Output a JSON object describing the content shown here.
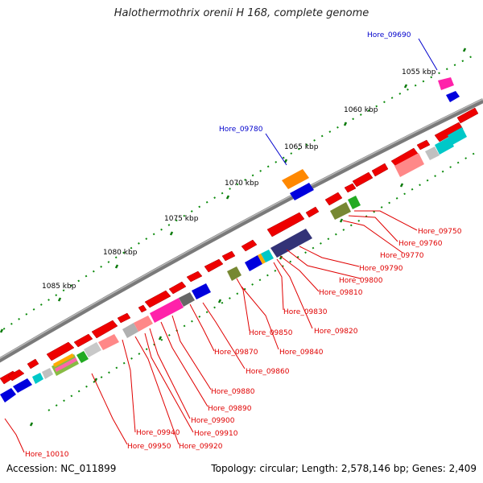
{
  "title": "Halothermothrix orenii H 168, complete genome",
  "footer": {
    "accession": "Accession: NC_011899",
    "topology": "Topology: circular; Length: 2,578,146 bp; Genes: 2,409"
  },
  "scale_labels": [
    "1055 kbp",
    "1060 kbp",
    "1065 kbp",
    "1070 kbp",
    "1075 kbp",
    "1080 kbp",
    "1085 kbp"
  ],
  "highlighted_genes": [
    "Hore_09690",
    "Hore_09780"
  ],
  "gene_labels": [
    "Hore_09750",
    "Hore_09760",
    "Hore_09770",
    "Hore_09790",
    "Hore_09800",
    "Hore_09810",
    "Hore_09830",
    "Hore_09820",
    "Hore_09850",
    "Hore_09840",
    "Hore_09870",
    "Hore_09860",
    "Hore_09880",
    "Hore_09890",
    "Hore_09900",
    "Hore_09910",
    "Hore_09940",
    "Hore_09920",
    "Hore_09950",
    "Hore_10010"
  ],
  "colors": {
    "forward_gene": "#ff0000",
    "backbone": "#808080",
    "label_red": "#e00000",
    "label_blue": "#0000cc",
    "tick": "#008000"
  }
}
